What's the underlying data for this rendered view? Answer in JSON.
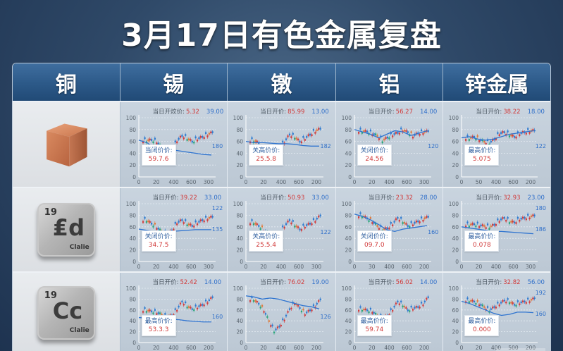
{
  "title": "3月17日有色金属复盘",
  "columns": [
    "铜",
    "锡",
    "镦",
    "铝",
    "锌金属"
  ],
  "rows": [
    {
      "metal_image": {
        "type": "copper-cube"
      },
      "cells": [
        {
          "header_label": "当日开炆价:",
          "header_red": "5.32",
          "header_blue": "39.00",
          "callout_label": "当闭价价:",
          "callout_value": "59.7.6",
          "end_label": "180"
        },
        {
          "header_label": "当日开价:",
          "header_red": "85.99",
          "header_blue": "13.00",
          "callout_label": "关高价价:",
          "callout_value": "25.5.8",
          "end_label": "182"
        },
        {
          "header_label": "当日开价:",
          "header_red": "56.27",
          "header_blue": "14.00",
          "callout_label": "关闭价价:",
          "callout_value": "24.56",
          "end_label": "120"
        },
        {
          "header_label": "当日开价:",
          "header_red": "38.22",
          "header_blue": "18.00",
          "callout_label": "最高价价:",
          "callout_value": "5.075",
          "end_label": "122"
        }
      ]
    },
    {
      "metal_image": {
        "type": "element-tile",
        "number": "19",
        "symbol": "₤d",
        "name": "Clalie"
      },
      "cells": [
        {
          "header_label": "当日开价:",
          "header_red": "39.22",
          "header_blue": "33.00",
          "callout_label": "关闭价价:",
          "callout_value": "34.7.5",
          "end_label": "122",
          "end_label2": "135"
        },
        {
          "header_label": "当日开价:",
          "header_red": "50.93",
          "header_blue": "33.00",
          "callout_label": "关高价价:",
          "callout_value": "25.5.4",
          "end_label": "122"
        },
        {
          "header_label": "当日开价:",
          "header_red": "23.32",
          "header_blue": "28.00",
          "callout_label": "关闭价价:",
          "callout_value": "09.7.0",
          "end_label": "160"
        },
        {
          "header_label": "当日开价:",
          "header_red": "32.93",
          "header_blue": "23.00",
          "callout_label": "最高价价:",
          "callout_value": "0.078",
          "end_label": "180",
          "end_label2": "186"
        }
      ]
    },
    {
      "metal_image": {
        "type": "element-tile",
        "number": "19",
        "symbol": "Cc",
        "name": "Clalie"
      },
      "cells": [
        {
          "header_label": "当日开价:",
          "header_red": "52.42",
          "header_blue": "14.00",
          "callout_label": "最高价价:",
          "callout_value": "53.3.3",
          "end_label": "160"
        },
        {
          "header_label": "当日开价:",
          "header_red": "76.02",
          "header_blue": "19.00",
          "callout_label": "",
          "callout_value": "",
          "end_label": "126"
        },
        {
          "header_label": "当日开价:",
          "header_red": "56.02",
          "header_blue": "14.00",
          "callout_label": "最高价价:",
          "callout_value": "59.74",
          "end_label": ""
        },
        {
          "header_label": "当日开价:",
          "header_red": "32.82",
          "header_blue": "56.00",
          "callout_label": "最高价价:",
          "callout_value": "0.000",
          "end_label": "192",
          "end_label2": "160"
        }
      ]
    }
  ],
  "chart_data": [
    {
      "type": "candlestick-line",
      "metal": "锡",
      "row": 1,
      "yticks": [
        0,
        20,
        40,
        60,
        80,
        100
      ],
      "xticks": [
        "0",
        "20",
        "400",
        "600",
        "300"
      ],
      "ylim": [
        0,
        100
      ],
      "close": [
        62,
        63,
        60,
        50,
        42,
        45,
        62,
        70,
        66,
        60,
        65,
        68,
        72,
        76
      ],
      "line": [
        62,
        58,
        48,
        45,
        46,
        44,
        42,
        40,
        38,
        37
      ]
    },
    {
      "type": "candlestick-line",
      "metal": "镦",
      "row": 1,
      "yticks": [
        0,
        20,
        40,
        60,
        80,
        100
      ],
      "xticks": [
        "0",
        "20",
        "400",
        "600",
        "200"
      ],
      "ylim": [
        0,
        100
      ],
      "close": [
        62,
        58,
        40,
        28,
        35,
        48,
        60,
        72,
        68,
        60,
        66,
        72,
        78,
        82
      ],
      "line": [
        60,
        58,
        58,
        57,
        56,
        56,
        55,
        53,
        52,
        52
      ]
    },
    {
      "type": "candlestick-line",
      "metal": "铝",
      "row": 1,
      "yticks": [
        0,
        20,
        40,
        60,
        80,
        100
      ],
      "xticks": [
        "0",
        "20",
        "400",
        "600",
        "300"
      ],
      "ylim": [
        0,
        100
      ],
      "close": [
        78,
        77,
        74,
        70,
        62,
        67,
        72,
        75,
        80,
        76,
        70,
        74,
        76,
        78
      ],
      "line": [
        80,
        76,
        72,
        66,
        72,
        78,
        76,
        70,
        74,
        78
      ]
    },
    {
      "type": "candlestick-line",
      "metal": "锌金属",
      "row": 1,
      "yticks": [
        0,
        20,
        40,
        60,
        80,
        100
      ],
      "xticks": [
        "0",
        "50",
        "400",
        "600",
        "200"
      ],
      "ylim": [
        0,
        100
      ],
      "close": [
        66,
        68,
        64,
        60,
        58,
        64,
        74,
        76,
        72,
        68,
        74,
        76,
        78,
        79
      ],
      "line": [
        66,
        68,
        64,
        62,
        64,
        68,
        72,
        74,
        76,
        78
      ]
    },
    {
      "type": "candlestick-line",
      "metal": "锡",
      "row": 2,
      "yticks": [
        0,
        20,
        40,
        60,
        80,
        100
      ],
      "xticks": [
        "0",
        "20",
        "400",
        "600",
        "300"
      ],
      "ylim": [
        0,
        100
      ],
      "close": [
        72,
        66,
        60,
        52,
        48,
        54,
        68,
        72,
        66,
        62,
        68,
        72,
        75,
        78
      ],
      "line": [
        56,
        54,
        52,
        51,
        52,
        53,
        54,
        55,
        55,
        55
      ]
    },
    {
      "type": "candlestick-line",
      "metal": "镦",
      "row": 2,
      "yticks": [
        0,
        20,
        40,
        60,
        80,
        100
      ],
      "xticks": [
        "0",
        "20",
        "400",
        "600",
        "300"
      ],
      "ylim": [
        0,
        100
      ],
      "close": [
        68,
        62,
        55,
        48,
        42,
        48,
        62,
        72,
        64,
        56,
        62,
        66,
        72,
        80
      ],
      "line": []
    },
    {
      "type": "candlestick-line",
      "metal": "铝",
      "row": 2,
      "yticks": [
        0,
        20,
        40,
        60,
        80,
        100
      ],
      "xticks": [
        "0",
        "30",
        "400",
        "600",
        "200"
      ],
      "ylim": [
        0,
        100
      ],
      "close": [
        80,
        75,
        70,
        62,
        56,
        58,
        66,
        76,
        70,
        62,
        66,
        70,
        74,
        78
      ],
      "line": [
        82,
        78,
        72,
        64,
        55,
        52,
        56,
        58,
        60,
        62
      ]
    },
    {
      "type": "candlestick-line",
      "metal": "锌金属",
      "row": 2,
      "yticks": [
        0,
        20,
        40,
        60,
        80,
        100
      ],
      "xticks": [
        "0",
        "20",
        "400",
        "600",
        "300"
      ],
      "ylim": [
        0,
        100
      ],
      "close": [
        64,
        65,
        63,
        62,
        60,
        64,
        72,
        76,
        70,
        68,
        74,
        76,
        78,
        80
      ],
      "line": [
        60,
        58,
        56,
        54,
        52,
        52,
        51,
        50,
        49,
        48
      ]
    },
    {
      "type": "candlestick-line",
      "metal": "锡",
      "row": 3,
      "yticks": [
        0,
        20,
        40,
        60,
        80,
        100
      ],
      "xticks": [
        "0",
        "20",
        "400",
        "600",
        "200"
      ],
      "ylim": [
        0,
        100
      ],
      "close": [
        60,
        58,
        56,
        52,
        48,
        50,
        62,
        76,
        68,
        62,
        66,
        70,
        76,
        84
      ],
      "line": [
        46,
        45,
        44,
        44,
        43,
        42,
        40,
        39,
        38,
        38
      ]
    },
    {
      "type": "candlestick-line",
      "metal": "镦",
      "row": 3,
      "yticks": [
        0,
        20,
        40,
        60,
        80,
        100
      ],
      "xticks": [
        "0",
        "20",
        "400",
        "600",
        "200"
      ],
      "ylim": [
        0,
        100
      ],
      "close": [
        80,
        72,
        60,
        40,
        22,
        30,
        44,
        62,
        74,
        64,
        54,
        60,
        68,
        80
      ],
      "line": [
        86,
        84,
        80,
        82,
        80,
        76,
        72,
        68,
        66,
        62
      ]
    },
    {
      "type": "candlestick-line",
      "metal": "铝",
      "row": 3,
      "yticks": [
        0,
        20,
        40,
        60,
        80,
        100
      ],
      "xticks": [
        "0",
        "20",
        "400",
        "600",
        "200"
      ],
      "ylim": [
        0,
        100
      ],
      "close": [
        62,
        60,
        58,
        50,
        46,
        50,
        62,
        76,
        70,
        60,
        64,
        66,
        72,
        84
      ],
      "line": []
    },
    {
      "type": "candlestick-line",
      "metal": "锌金属",
      "row": 3,
      "yticks": [
        0,
        20,
        40,
        60,
        80,
        100
      ],
      "xticks": [
        "0",
        "20",
        "400",
        "500",
        "200"
      ],
      "ylim": [
        0,
        100
      ],
      "close": [
        78,
        76,
        72,
        66,
        60,
        66,
        72,
        78,
        76,
        70,
        74,
        76,
        78,
        82
      ],
      "line": [
        76,
        72,
        66,
        60,
        54,
        50,
        52,
        56,
        56,
        55
      ]
    }
  ]
}
